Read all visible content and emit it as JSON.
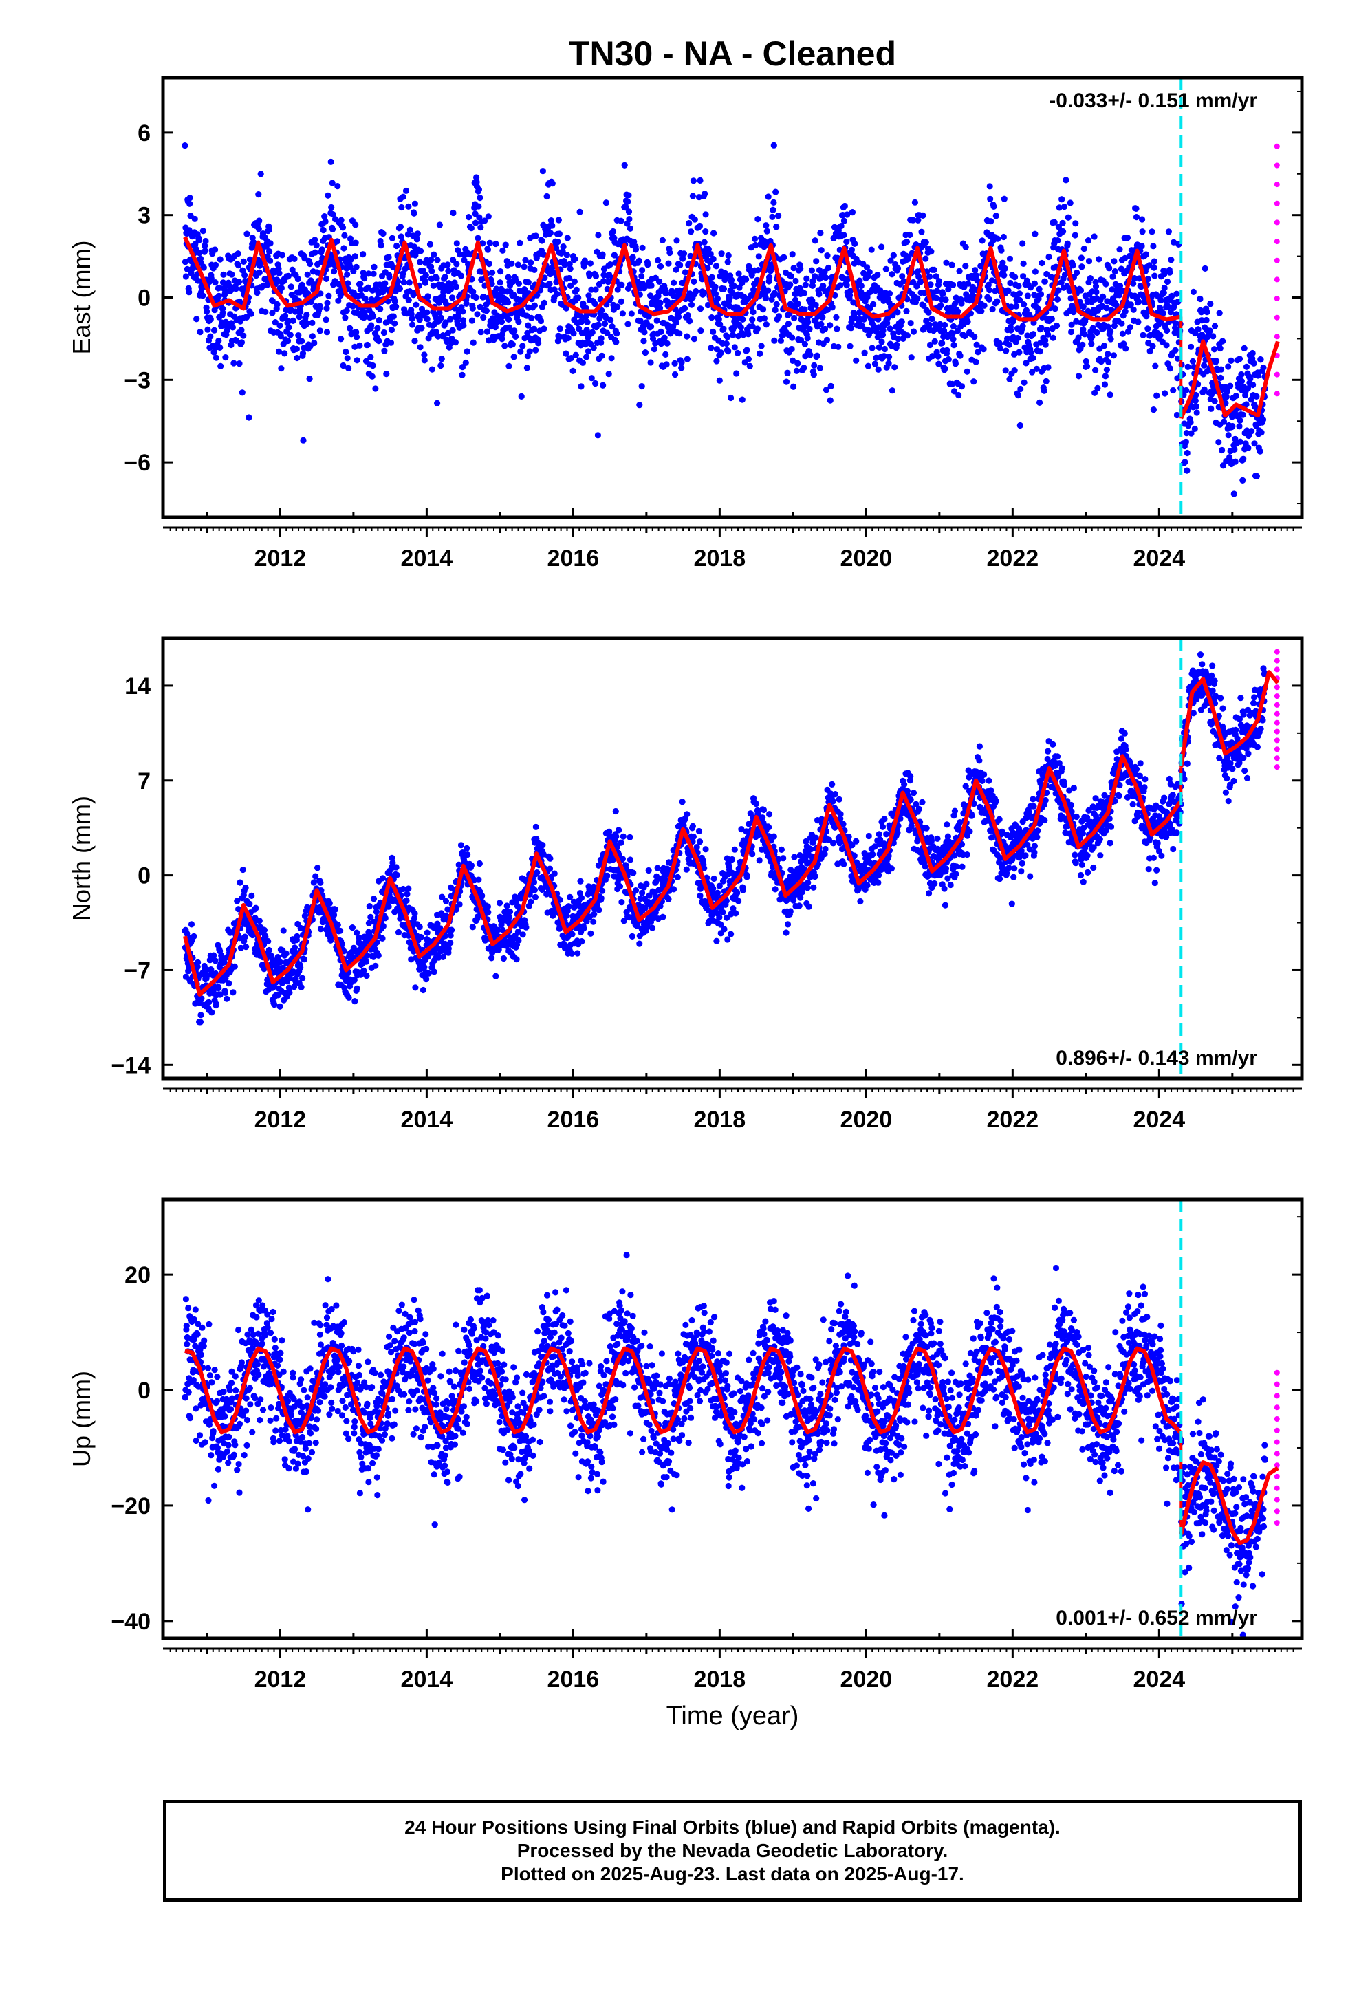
{
  "title": "TN30  - NA - Cleaned",
  "colors": {
    "final_orbits": "#0000ff",
    "rapid_orbits": "#ff00ff",
    "model_fit": "#ff0000",
    "offset_marker": "#00e5ee"
  },
  "footer": {
    "line1": "24 Hour Positions Using Final Orbits (blue) and Rapid Orbits (magenta).",
    "line2": "Processed by the Nevada Geodetic Laboratory.",
    "line3": "Plotted on 2025-Aug-23. Last data on 2025-Aug-17."
  },
  "chart_data": [
    {
      "type": "scatter",
      "panel": "east",
      "ylabel": "East (mm)",
      "xlabel": "",
      "xlim": [
        2010.4,
        2025.95
      ],
      "ylim": [
        -8,
        8
      ],
      "xticks": [
        2012,
        2014,
        2016,
        2018,
        2020,
        2022,
        2024
      ],
      "yticks": [
        -6,
        -3,
        0,
        3,
        6
      ],
      "velocity_label": "-0.033+/- 0.151 mm/yr",
      "velocity_label_position": "top-right",
      "offset_epoch": 2024.3,
      "data_span": [
        2010.7,
        2025.62
      ],
      "series": [
        {
          "name": "Final Orbits",
          "style": "points",
          "color": "#0000ff",
          "fit_ref": "model",
          "noise_sd": 1.2
        },
        {
          "name": "Rapid Orbits",
          "style": "points",
          "color": "#ff00ff",
          "x_range": [
            2025.45,
            2025.62
          ],
          "y_range": [
            -3.5,
            5.5
          ]
        },
        {
          "name": "Model",
          "style": "line",
          "color": "#ff0000",
          "segments": [
            {
              "x": [
                2010.7,
                2010.9,
                2011.1,
                2011.3,
                2011.5,
                2011.7,
                2011.9,
                2012.1,
                2012.3,
                2012.5,
                2012.7,
                2012.9,
                2013.1,
                2013.3,
                2013.5,
                2013.7,
                2013.9,
                2014.1,
                2014.3,
                2014.5,
                2014.7,
                2014.9,
                2015.1,
                2015.3,
                2015.5,
                2015.7,
                2015.9,
                2016.1,
                2016.3,
                2016.5,
                2016.7,
                2016.9,
                2017.1,
                2017.3,
                2017.5,
                2017.7,
                2017.9,
                2018.1,
                2018.3,
                2018.5,
                2018.7,
                2018.9,
                2019.1,
                2019.3,
                2019.5,
                2019.7,
                2019.9,
                2020.1,
                2020.3,
                2020.5,
                2020.7,
                2020.9,
                2021.1,
                2021.3,
                2021.5,
                2021.7,
                2021.9,
                2022.1,
                2022.3,
                2022.5,
                2022.7,
                2022.9,
                2023.1,
                2023.3,
                2023.5,
                2023.7,
                2023.9,
                2024.1,
                2024.3
              ],
              "y": [
                2.2,
                1.0,
                -0.3,
                -0.1,
                -0.4,
                2.0,
                0.4,
                -0.3,
                -0.2,
                0.2,
                2.1,
                0.1,
                -0.3,
                -0.3,
                0.1,
                2.0,
                0.0,
                -0.4,
                -0.4,
                0.0,
                2.0,
                -0.2,
                -0.5,
                -0.3,
                0.3,
                1.9,
                -0.2,
                -0.5,
                -0.5,
                0.1,
                1.9,
                -0.3,
                -0.6,
                -0.5,
                0.0,
                1.9,
                -0.3,
                -0.6,
                -0.6,
                0.0,
                1.9,
                -0.4,
                -0.6,
                -0.6,
                -0.1,
                1.8,
                -0.3,
                -0.7,
                -0.6,
                -0.1,
                1.8,
                -0.4,
                -0.7,
                -0.7,
                -0.2,
                1.8,
                -0.4,
                -0.8,
                -0.8,
                -0.3,
                1.7,
                -0.5,
                -0.8,
                -0.8,
                -0.3,
                1.7,
                -0.6,
                -0.8,
                -0.7
              ]
            },
            {
              "x": [
                2024.3,
                2024.45,
                2024.6,
                2024.75,
                2024.9,
                2025.05,
                2025.2,
                2025.35,
                2025.5,
                2025.62
              ],
              "y": [
                -4.4,
                -3.5,
                -1.6,
                -2.8,
                -4.3,
                -3.9,
                -4.1,
                -4.3,
                -2.6,
                -1.6
              ]
            }
          ]
        }
      ]
    },
    {
      "type": "scatter",
      "panel": "north",
      "ylabel": "North (mm)",
      "xlabel": "",
      "xlim": [
        2010.4,
        2025.95
      ],
      "ylim": [
        -15,
        17.5
      ],
      "xticks": [
        2012,
        2014,
        2016,
        2018,
        2020,
        2022,
        2024
      ],
      "yticks": [
        -14,
        -7,
        0,
        7,
        14
      ],
      "velocity_label": "0.896+/- 0.143 mm/yr",
      "velocity_label_position": "bottom-right",
      "offset_epoch": 2024.3,
      "data_span": [
        2010.7,
        2025.62
      ],
      "series": [
        {
          "name": "Final Orbits",
          "style": "points",
          "color": "#0000ff",
          "fit_ref": "model",
          "noise_sd": 1.1
        },
        {
          "name": "Rapid Orbits",
          "style": "points",
          "color": "#ff00ff",
          "x_range": [
            2025.45,
            2025.62
          ],
          "y_range": [
            8.0,
            16.5
          ]
        },
        {
          "name": "Model",
          "style": "line",
          "color": "#ff0000",
          "segments": [
            {
              "x": [
                2010.7,
                2010.9,
                2011.1,
                2011.3,
                2011.5,
                2011.7,
                2011.9,
                2012.1,
                2012.3,
                2012.5,
                2012.7,
                2012.9,
                2013.1,
                2013.3,
                2013.5,
                2013.7,
                2013.9,
                2014.1,
                2014.3,
                2014.5,
                2014.7,
                2014.9,
                2015.1,
                2015.3,
                2015.5,
                2015.7,
                2015.9,
                2016.1,
                2016.3,
                2016.5,
                2016.7,
                2016.9,
                2017.1,
                2017.3,
                2017.5,
                2017.7,
                2017.9,
                2018.1,
                2018.3,
                2018.5,
                2018.7,
                2018.9,
                2019.1,
                2019.3,
                2019.5,
                2019.7,
                2019.9,
                2020.1,
                2020.3,
                2020.5,
                2020.7,
                2020.9,
                2021.1,
                2021.3,
                2021.5,
                2021.7,
                2021.9,
                2022.1,
                2022.3,
                2022.5,
                2022.7,
                2022.9,
                2023.1,
                2023.3,
                2023.5,
                2023.7,
                2023.9,
                2024.1,
                2024.3
              ],
              "y": [
                -4.5,
                -8.8,
                -7.8,
                -6.6,
                -2.2,
                -4.5,
                -7.9,
                -7.0,
                -5.6,
                -1.1,
                -3.6,
                -7.0,
                -6.0,
                -4.6,
                -0.2,
                -2.7,
                -6.0,
                -5.1,
                -3.6,
                0.7,
                -1.8,
                -5.1,
                -4.2,
                -2.7,
                1.6,
                -0.8,
                -4.2,
                -3.3,
                -1.8,
                2.5,
                0.1,
                -3.3,
                -2.4,
                -0.8,
                3.4,
                1.0,
                -2.4,
                -1.4,
                0.1,
                4.3,
                1.9,
                -1.5,
                -0.5,
                1.0,
                5.2,
                2.8,
                -0.6,
                0.4,
                1.9,
                6.1,
                3.7,
                0.3,
                1.3,
                2.8,
                7.0,
                4.6,
                1.2,
                2.2,
                3.7,
                7.9,
                5.5,
                2.1,
                3.1,
                4.6,
                8.8,
                6.4,
                3.0,
                4.0,
                5.5
              ]
            },
            {
              "x": [
                2024.3,
                2024.45,
                2024.6,
                2024.75,
                2024.9,
                2025.05,
                2025.2,
                2025.35,
                2025.5,
                2025.62
              ],
              "y": [
                8.0,
                13.5,
                14.5,
                12.0,
                9.0,
                9.5,
                10.2,
                11.5,
                15.0,
                14.2
              ]
            }
          ]
        }
      ]
    },
    {
      "type": "scatter",
      "panel": "up",
      "ylabel": "Up (mm)",
      "xlabel": "Time (year)",
      "xlim": [
        2010.4,
        2025.95
      ],
      "ylim": [
        -43,
        33
      ],
      "xticks": [
        2012,
        2014,
        2016,
        2018,
        2020,
        2022,
        2024
      ],
      "yticks": [
        -40,
        -20,
        0,
        20
      ],
      "velocity_label": "0.001+/- 0.652 mm/yr",
      "velocity_label_position": "bottom-right",
      "offset_epoch": 2024.3,
      "data_span": [
        2010.7,
        2025.62
      ],
      "series": [
        {
          "name": "Final Orbits",
          "style": "points",
          "color": "#0000ff",
          "fit_ref": "model",
          "noise_sd": 5.0
        },
        {
          "name": "Rapid Orbits",
          "style": "points",
          "color": "#ff00ff",
          "x_range": [
            2025.45,
            2025.62
          ],
          "y_range": [
            -23,
            3
          ]
        },
        {
          "name": "Model",
          "style": "line",
          "color": "#ff0000",
          "segments": [
            {
              "x": [
                2010.7,
                2010.8,
                2010.9,
                2011.0,
                2011.1,
                2011.2,
                2011.3,
                2011.4,
                2011.5,
                2011.6,
                2011.7,
                2011.8,
                2011.9,
                2012.0,
                2012.1,
                2012.2,
                2012.3,
                2012.4,
                2012.5,
                2012.6,
                2012.7,
                2012.8,
                2012.9,
                2013.0,
                2013.1,
                2013.2,
                2013.3,
                2013.4,
                2013.5,
                2013.6,
                2013.7,
                2013.8,
                2013.9,
                2014.0,
                2014.1,
                2014.2,
                2014.3,
                2014.4,
                2014.5,
                2014.6,
                2014.7,
                2014.8,
                2014.9,
                2015.0,
                2015.1,
                2015.2,
                2015.3,
                2015.4,
                2015.5,
                2015.6,
                2015.7,
                2015.8,
                2015.9,
                2016.0,
                2016.1,
                2016.2,
                2016.3,
                2016.4,
                2016.5,
                2016.6,
                2016.7,
                2016.8,
                2016.9,
                2017.0,
                2017.1,
                2017.2,
                2017.3,
                2017.4,
                2017.5,
                2017.6,
                2017.7,
                2017.8,
                2017.9,
                2018.0,
                2018.1,
                2018.2,
                2018.3,
                2018.4,
                2018.5,
                2018.6,
                2018.7,
                2018.8,
                2018.9,
                2019.0,
                2019.1,
                2019.2,
                2019.3,
                2019.4,
                2019.5,
                2019.6,
                2019.7,
                2019.8,
                2019.9,
                2020.0,
                2020.1,
                2020.2,
                2020.3,
                2020.4,
                2020.5,
                2020.6,
                2020.7,
                2020.8,
                2020.9,
                2021.0,
                2021.1,
                2021.2,
                2021.3,
                2021.4,
                2021.5,
                2021.6,
                2021.7,
                2021.8,
                2021.9,
                2022.0,
                2022.1,
                2022.2,
                2022.3,
                2022.4,
                2022.5,
                2022.6,
                2022.7,
                2022.8,
                2022.9,
                2023.0,
                2023.1,
                2023.2,
                2023.3,
                2023.4,
                2023.5,
                2023.6,
                2023.7,
                2023.8,
                2023.9,
                2024.0,
                2024.1,
                2024.2,
                2024.3
              ],
              "y": [
                6.8,
                6.5,
                3.8,
                -0.7,
                -5.0,
                -7.3,
                -6.8,
                -3.9,
                0.6,
                4.9,
                7.2,
                6.7,
                3.8,
                -0.7,
                -5.0,
                -7.3,
                -6.8,
                -3.9,
                0.6,
                4.9,
                7.2,
                6.7,
                3.8,
                -0.7,
                -5.0,
                -7.3,
                -6.8,
                -3.9,
                0.6,
                4.9,
                7.2,
                6.7,
                3.8,
                -0.7,
                -5.0,
                -7.3,
                -6.8,
                -3.9,
                0.6,
                4.9,
                7.2,
                6.7,
                3.8,
                -0.7,
                -5.0,
                -7.3,
                -6.8,
                -3.9,
                0.6,
                4.9,
                7.2,
                6.7,
                3.8,
                -0.7,
                -5.0,
                -7.3,
                -6.8,
                -3.9,
                0.6,
                4.9,
                7.2,
                6.7,
                3.8,
                -0.7,
                -5.0,
                -7.3,
                -6.8,
                -3.9,
                0.6,
                4.9,
                7.2,
                6.7,
                3.8,
                -0.7,
                -5.0,
                -7.3,
                -6.8,
                -3.9,
                0.6,
                4.9,
                7.2,
                6.7,
                3.8,
                -0.7,
                -5.0,
                -7.3,
                -6.8,
                -3.9,
                0.6,
                4.9,
                7.2,
                6.7,
                3.8,
                -0.7,
                -5.0,
                -7.3,
                -6.8,
                -3.9,
                0.6,
                4.9,
                7.2,
                6.7,
                3.8,
                -0.7,
                -5.0,
                -7.3,
                -6.8,
                -3.9,
                0.6,
                4.9,
                7.2,
                6.7,
                3.8,
                -0.7,
                -5.0,
                -7.3,
                -6.8,
                -3.9,
                0.6,
                4.9,
                7.2,
                6.7,
                3.8,
                -0.7,
                -5.0,
                -7.3,
                -6.8,
                -3.9,
                0.6,
                4.9,
                7.2,
                6.7,
                3.8,
                -0.7,
                -5.0,
                -6.0,
                -7.5
              ]
            },
            {
              "x": [
                2024.3,
                2024.4,
                2024.5,
                2024.6,
                2024.7,
                2024.8,
                2024.9,
                2025.0,
                2025.1,
                2025.2,
                2025.3,
                2025.4,
                2025.5,
                2025.62
              ],
              "y": [
                -25.0,
                -19.5,
                -15.0,
                -12.5,
                -13.0,
                -16.0,
                -20.5,
                -24.5,
                -26.5,
                -26.0,
                -23.0,
                -18.5,
                -14.5,
                -13.5
              ]
            }
          ]
        }
      ]
    }
  ]
}
